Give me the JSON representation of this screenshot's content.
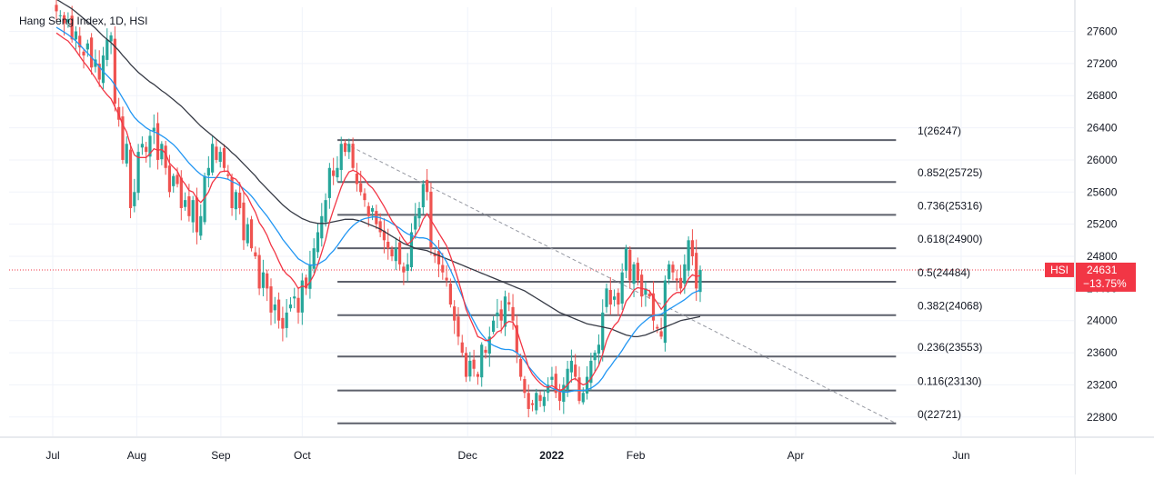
{
  "chart_data": {
    "type": "candlestick",
    "title": "Hang Seng Index, 1D, HSI",
    "symbol": "HSI",
    "last_price": "24631",
    "change_pct": "−13.75%",
    "ylim": [
      22560,
      27900
    ],
    "y_ticks": [
      "27600",
      "27200",
      "26800",
      "26400",
      "26000",
      "25600",
      "25200",
      "24800",
      "24400",
      "24000",
      "23600",
      "23200",
      "22800"
    ],
    "x_ticks": [
      "Jul",
      "Aug",
      "Sep",
      "Oct",
      "Dec",
      "2022",
      "Feb",
      "Apr",
      "Jun"
    ],
    "x_tick_days": [
      0,
      31,
      62,
      92,
      153,
      184,
      215,
      274,
      335
    ],
    "fibonacci": [
      {
        "label": "1(26247)",
        "value": 26247
      },
      {
        "label": "0.852(25725)",
        "value": 25725
      },
      {
        "label": "0.736(25316)",
        "value": 25316
      },
      {
        "label": "0.618(24900)",
        "value": 24900
      },
      {
        "label": "0.5(24484)",
        "value": 24484
      },
      {
        "label": "0.382(24068)",
        "value": 24068
      },
      {
        "label": "0.236(23553)",
        "value": 23553
      },
      {
        "label": "0.116(23130)",
        "value": 23130
      },
      {
        "label": "0(22721)",
        "value": 22721
      }
    ],
    "fib_start_day": 105,
    "fib_end_day": 311,
    "trendline": {
      "start_day": 108,
      "start_value": 26200,
      "end_day": 311,
      "end_value": 22721
    },
    "closes": [
      27850,
      27800,
      27700,
      27750,
      27500,
      27600,
      27400,
      27300,
      27450,
      27150,
      27250,
      27000,
      27300,
      27500,
      27550,
      26700,
      26500,
      26000,
      26200,
      25400,
      25600,
      26100,
      26200,
      26100,
      26300,
      26400,
      26000,
      26200,
      25900,
      25600,
      25800,
      25700,
      25400,
      25500,
      25300,
      25500,
      25100,
      25300,
      25800,
      25900,
      26200,
      26000,
      26100,
      25900,
      25800,
      25400,
      25600,
      25400,
      25000,
      25200,
      24900,
      24800,
      24400,
      24600,
      24400,
      24100,
      24200,
      24000,
      23900,
      24100,
      24200,
      24300,
      24100,
      24500,
      24400,
      24700,
      24900,
      25100,
      25300,
      25500,
      25900,
      25800,
      25900,
      26200,
      26100,
      26200,
      25900,
      25700,
      25600,
      25500,
      25300,
      25400,
      25200,
      25100,
      25000,
      24900,
      24800,
      24900,
      24700,
      24600,
      24700,
      25100,
      25300,
      25400,
      25700,
      25600,
      24900,
      24800,
      24700,
      24600,
      24500,
      24200,
      24000,
      23800,
      23600,
      23300,
      23500,
      23400,
      23300,
      23700,
      23600,
      23800,
      24000,
      24100,
      24000,
      24300,
      24200,
      24000,
      23600,
      23300,
      23100,
      22900,
      22950,
      23100,
      23000,
      23050,
      23200,
      23300,
      23100,
      23000,
      23200,
      23400,
      23500,
      23300,
      23000,
      23100,
      23300,
      23500,
      23600,
      23700,
      24100,
      24400,
      24200,
      24300,
      24200,
      24600,
      24900,
      24500,
      24700,
      24500,
      24300,
      24400,
      24300,
      24000,
      23900,
      23800,
      24500,
      24700,
      24600,
      24500,
      24400,
      24700,
      25000,
      24800,
      24400,
      24631
    ],
    "ma_red": [
      27580,
      27545,
      27510,
      27480,
      27420,
      27360,
      27290,
      27220,
      27160,
      27090,
      27020,
      26940,
      26870,
      26810,
      26760,
      26660,
      26560,
      26440,
      26350,
      26180,
      26060,
      26030,
      26030,
      26030,
      26080,
      26140,
      26120,
      26130,
      26080,
      25960,
      25910,
      25860,
      25760,
      25700,
      25620,
      25600,
      25520,
      25470,
      25530,
      25600,
      25720,
      25780,
      25850,
      25860,
      25860,
      25780,
      25760,
      25700,
      25600,
      25540,
      25440,
      25350,
      25220,
      25150,
      25060,
      24940,
      24850,
      24740,
      24640,
      24580,
      24540,
      24480,
      24400,
      24430,
      24420,
      24480,
      24570,
      24700,
      24850,
      25010,
      25230,
      25380,
      25520,
      25660,
      25770,
      25850,
      25870,
      25850,
      25810,
      25760,
      25690,
      25650,
      25580,
      25500,
      25420,
      25330,
      25240,
      25180,
      25090,
      25010,
      24950,
      24990,
      25060,
      25140,
      25260,
      25330,
      25250,
      25170,
      25090,
      25010,
      24930,
      24800,
      24660,
      24500,
      24330,
      24140,
      24030,
      23920,
      23800,
      23780,
      23750,
      23760,
      23800,
      23860,
      23880,
      23960,
      23990,
      23980,
      23880,
      23730,
      23580,
      23420,
      23330,
      23270,
      23220,
      23180,
      23170,
      23190,
      23160,
      23130,
      23150,
      23200,
      23260,
      23280,
      23230,
      23200,
      23220,
      23280,
      23360,
      23440,
      23580,
      23750,
      23860,
      23940,
      23990,
      24100,
      24240,
      24300,
      24380,
      24410,
      24400,
      24390,
      24370,
      24290,
      24220,
      24140,
      24200,
      24270,
      24320,
      24350,
      24350,
      24410,
      24520,
      24570,
      24550,
      24560
    ],
    "ma_blue": [
      27650,
      27620,
      27590,
      27560,
      27520,
      27480,
      27430,
      27380,
      27330,
      27280,
      27220,
      27160,
      27100,
      27050,
      27000,
      26930,
      26850,
      26770,
      26690,
      26600,
      26530,
      26480,
      26440,
      26400,
      26370,
      26350,
      26330,
      26300,
      26270,
      26230,
      26190,
      26140,
      26080,
      26020,
      25960,
      25910,
      25860,
      25820,
      25790,
      25780,
      25780,
      25780,
      25780,
      25770,
      25760,
      25730,
      25710,
      25680,
      25640,
      25600,
      25550,
      25490,
      25420,
      25360,
      25300,
      25230,
      25160,
      25090,
      25010,
      24950,
      24890,
      24830,
      24770,
      24740,
      24710,
      24690,
      24690,
      24700,
      24730,
      24760,
      24820,
      24870,
      24930,
      25000,
      25070,
      25130,
      25180,
      25220,
      25250,
      25270,
      25280,
      25290,
      25290,
      25280,
      25260,
      25240,
      25210,
      25180,
      25150,
      25110,
      25080,
      25060,
      25040,
      25030,
      25030,
      25020,
      24990,
      24940,
      24880,
      24810,
      24730,
      24630,
      24520,
      24410,
      24300,
      24180,
      24080,
      23990,
      23900,
      23830,
      23770,
      23720,
      23690,
      23670,
      23650,
      23640,
      23640,
      23630,
      23600,
      23560,
      23500,
      23430,
      23370,
      23310,
      23260,
      23220,
      23180,
      23160,
      23140,
      23120,
      23110,
      23110,
      23120,
      23130,
      23130,
      23130,
      23140,
      23160,
      23190,
      23230,
      23290,
      23370,
      23430,
      23500,
      23560,
      23630,
      23710,
      23780,
      23850,
      23910,
      23960,
      24000,
      24040,
      24060,
      24070,
      24080,
      24110,
      24140,
      24170,
      24200,
      24230,
      24260,
      24300,
      24340,
      24360,
      24380
    ],
    "ma_dark": [
      28000,
      27970,
      27940,
      27910,
      27880,
      27840,
      27800,
      27760,
      27720,
      27680,
      27640,
      27590,
      27540,
      27500,
      27460,
      27410,
      27360,
      27300,
      27250,
      27190,
      27140,
      27090,
      27050,
      27010,
      26970,
      26940,
      26900,
      26860,
      26830,
      26790,
      26750,
      26710,
      26670,
      26620,
      26570,
      26520,
      26470,
      26420,
      26380,
      26340,
      26300,
      26260,
      26220,
      26180,
      26140,
      26090,
      26050,
      26000,
      25950,
      25900,
      25850,
      25800,
      25740,
      25690,
      25640,
      25590,
      25540,
      25490,
      25440,
      25400,
      25360,
      25330,
      25300,
      25270,
      25250,
      25230,
      25220,
      25210,
      25210,
      25210,
      25220,
      25230,
      25240,
      25250,
      25260,
      25260,
      25260,
      25250,
      25240,
      25220,
      25200,
      25180,
      25160,
      25140,
      25110,
      25080,
      25050,
      25020,
      24990,
      24960,
      24940,
      24920,
      24900,
      24890,
      24880,
      24870,
      24850,
      24830,
      24810,
      24790,
      24770,
      24750,
      24730,
      24710,
      24690,
      24670,
      24650,
      24630,
      24610,
      24590,
      24570,
      24550,
      24530,
      24510,
      24490,
      24470,
      24450,
      24430,
      24410,
      24390,
      24370,
      24340,
      24310,
      24280,
      24250,
      24220,
      24190,
      24160,
      24130,
      24100,
      24080,
      24060,
      24040,
      24020,
      24000,
      23980,
      23960,
      23950,
      23940,
      23930,
      23920,
      23910,
      23900,
      23880,
      23860,
      23840,
      23820,
      23810,
      23800,
      23800,
      23810,
      23820,
      23840,
      23860,
      23880,
      23900,
      23920,
      23940,
      23960,
      23980,
      24000,
      24010,
      24020,
      24030,
      24040,
      24050
    ]
  }
}
